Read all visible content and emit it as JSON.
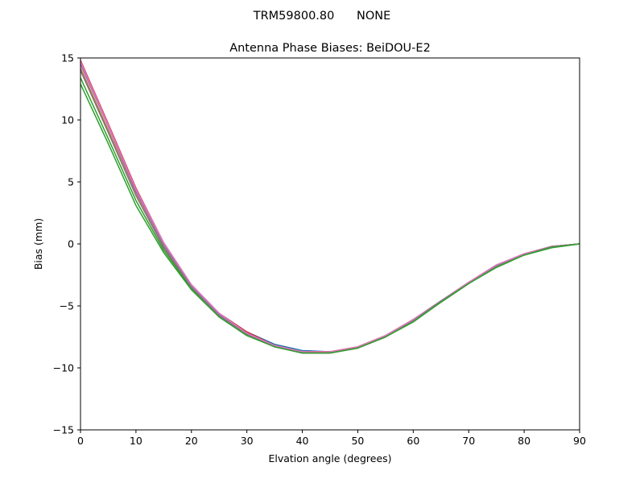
{
  "figure": {
    "suptitle": "TRM59800.80      NONE"
  },
  "chart_data": {
    "type": "line",
    "title": "Antenna Phase Biases: BeiDOU-E2",
    "xlabel": "Elvation angle (degrees)",
    "ylabel": "Bias (mm)",
    "xlim": [
      0,
      90
    ],
    "ylim": [
      -15,
      15
    ],
    "x_ticks": [
      0,
      10,
      20,
      30,
      40,
      50,
      60,
      70,
      80,
      90
    ],
    "y_ticks": [
      -15,
      -10,
      -5,
      0,
      5,
      10,
      15
    ],
    "x_tick_labels": [
      "0",
      "10",
      "20",
      "30",
      "40",
      "50",
      "60",
      "70",
      "80",
      "90"
    ],
    "y_tick_labels": [
      "−15",
      "−10",
      "−5",
      "0",
      "5",
      "10",
      "15"
    ],
    "grid": false,
    "legend": "none",
    "x": [
      0,
      5,
      10,
      15,
      20,
      25,
      30,
      35,
      40,
      45,
      50,
      55,
      60,
      65,
      70,
      75,
      80,
      85,
      90
    ],
    "series": [
      {
        "color": "#1f77b4",
        "values": [
          14.6,
          9.6,
          4.3,
          0.0,
          -3.3,
          -5.6,
          -7.1,
          -8.1,
          -8.6,
          -8.7,
          -8.3,
          -7.4,
          -6.1,
          -4.6,
          -3.1,
          -1.7,
          -0.8,
          -0.2,
          0.0
        ]
      },
      {
        "color": "#ff7f0e",
        "values": [
          14.2,
          9.2,
          4.0,
          -0.2,
          -3.4,
          -5.7,
          -7.2,
          -8.2,
          -8.7,
          -8.7,
          -8.3,
          -7.4,
          -6.1,
          -4.6,
          -3.1,
          -1.8,
          -0.8,
          -0.2,
          0.0
        ]
      },
      {
        "color": "#2ca02c",
        "values": [
          13.4,
          8.5,
          3.5,
          -0.5,
          -3.6,
          -5.8,
          -7.3,
          -8.3,
          -8.8,
          -8.8,
          -8.4,
          -7.5,
          -6.2,
          -4.7,
          -3.2,
          -1.8,
          -0.9,
          -0.3,
          0.0
        ]
      },
      {
        "color": "#d62728",
        "values": [
          14.8,
          9.7,
          4.5,
          0.1,
          -3.3,
          -5.6,
          -7.1,
          -8.2,
          -8.7,
          -8.7,
          -8.3,
          -7.4,
          -6.1,
          -4.6,
          -3.1,
          -1.7,
          -0.8,
          -0.2,
          0.0
        ]
      },
      {
        "color": "#9467bd",
        "values": [
          14.5,
          9.5,
          4.2,
          0.0,
          -3.4,
          -5.7,
          -7.2,
          -8.2,
          -8.8,
          -8.8,
          -8.4,
          -7.5,
          -6.1,
          -4.6,
          -3.1,
          -1.8,
          -0.8,
          -0.2,
          0.0
        ]
      },
      {
        "color": "#8c564b",
        "values": [
          14.0,
          9.0,
          3.9,
          -0.3,
          -3.5,
          -5.8,
          -7.3,
          -8.3,
          -8.8,
          -8.8,
          -8.4,
          -7.5,
          -6.2,
          -4.7,
          -3.2,
          -1.8,
          -0.9,
          -0.2,
          0.0
        ]
      },
      {
        "color": "#e377c2",
        "values": [
          14.7,
          9.6,
          4.4,
          0.1,
          -3.3,
          -5.6,
          -7.2,
          -8.2,
          -8.7,
          -8.7,
          -8.3,
          -7.4,
          -6.1,
          -4.6,
          -3.1,
          -1.7,
          -0.8,
          -0.2,
          0.0
        ]
      },
      {
        "color": "#7f7f7f",
        "values": [
          14.1,
          9.1,
          3.9,
          -0.2,
          -3.5,
          -5.8,
          -7.3,
          -8.3,
          -8.8,
          -8.8,
          -8.4,
          -7.5,
          -6.2,
          -4.6,
          -3.2,
          -1.8,
          -0.9,
          -0.2,
          0.0
        ]
      },
      {
        "color": "#2ca02c",
        "values": [
          12.9,
          8.1,
          3.1,
          -0.7,
          -3.7,
          -5.9,
          -7.4,
          -8.3,
          -8.8,
          -8.8,
          -8.4,
          -7.5,
          -6.3,
          -4.7,
          -3.2,
          -1.9,
          -0.9,
          -0.3,
          0.0
        ]
      }
    ]
  }
}
